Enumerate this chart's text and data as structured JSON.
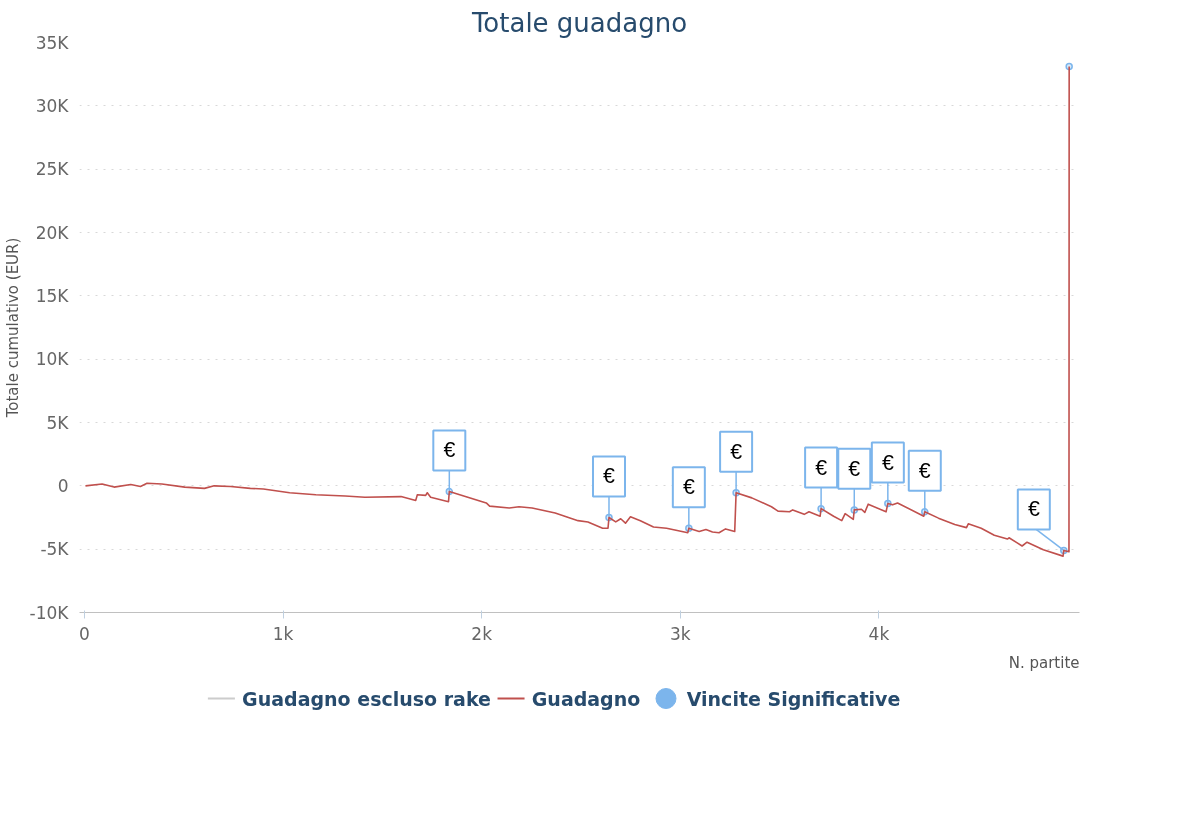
{
  "chart_data": {
    "type": "line",
    "title": "Totale guadagno",
    "xlabel": "N. partite",
    "ylabel": "Totale cumulativo (EUR)",
    "xlim": [
      -25,
      5010
    ],
    "ylim": [
      -10000,
      35000
    ],
    "xticks": [
      0,
      {
        "value": 1000,
        "label": "1k"
      },
      {
        "value": 2000,
        "label": "2k"
      },
      {
        "value": 3000,
        "label": "3k"
      },
      {
        "value": 4000,
        "label": "4k"
      }
    ],
    "yticks": [
      {
        "value": -10000,
        "label": "-10K"
      },
      {
        "value": -5000,
        "label": "-5K"
      },
      0,
      {
        "value": 5000,
        "label": "5K"
      },
      {
        "value": 10000,
        "label": "10K"
      },
      {
        "value": 15000,
        "label": "15K"
      },
      {
        "value": 20000,
        "label": "20K"
      },
      {
        "value": 25000,
        "label": "25K"
      },
      {
        "value": 30000,
        "label": "30K"
      },
      {
        "value": 35000,
        "label": "35K"
      }
    ],
    "grid": "y",
    "legend": "bottom",
    "line_style": "solid",
    "series": [
      {
        "name": "Guadagno escluso rake",
        "color": "#cccccc"
      },
      {
        "name": "Guadagno",
        "color": "#c0504d",
        "x": [
          5,
          89,
          149,
          233,
          282,
          315,
          390,
          505,
          604,
          653,
          736,
          835,
          901,
          1033,
          1165,
          1313,
          1412,
          1594,
          1668,
          1676,
          1718,
          1726,
          1743,
          1833,
          1837,
          2023,
          2040,
          2139,
          2188,
          2254,
          2370,
          2485,
          2535,
          2609,
          2636,
          2641,
          2675,
          2700,
          2724,
          2749,
          2799,
          2865,
          2931,
          3038,
          3043,
          3095,
          3129,
          3162,
          3195,
          3228,
          3274,
          3281,
          3360,
          3459,
          3492,
          3550,
          3566,
          3624,
          3648,
          3704,
          3709,
          3772,
          3813,
          3830,
          3871,
          3876,
          3912,
          3929,
          3946,
          4036,
          4045,
          4069,
          4094,
          4226,
          4231,
          4300,
          4382,
          4441,
          4450,
          4515,
          4581,
          4647,
          4655,
          4721,
          4746,
          4828,
          4927,
          4931,
          4957,
          4958
        ],
        "values": [
          0,
          150,
          -100,
          100,
          -50,
          200,
          150,
          -100,
          -200,
          0,
          -50,
          -200,
          -250,
          -550,
          -700,
          -800,
          -900,
          -850,
          -1150,
          -700,
          -750,
          -550,
          -900,
          -1250,
          -450,
          -1350,
          -1600,
          -1750,
          -1650,
          -1750,
          -2150,
          -2750,
          -2850,
          -3350,
          -3350,
          -2500,
          -2850,
          -2600,
          -2950,
          -2450,
          -2750,
          -3250,
          -3350,
          -3700,
          -3350,
          -3600,
          -3450,
          -3650,
          -3700,
          -3400,
          -3600,
          -550,
          -950,
          -1650,
          -2000,
          -2050,
          -1900,
          -2250,
          -2050,
          -2400,
          -1800,
          -2400,
          -2750,
          -2200,
          -2650,
          -1900,
          -1850,
          -2100,
          -1450,
          -2050,
          -1400,
          -1500,
          -1350,
          -2400,
          -2050,
          -2550,
          -3050,
          -3300,
          -3000,
          -3350,
          -3900,
          -4200,
          -4100,
          -4750,
          -4450,
          -5050,
          -5550,
          -5100,
          -5200,
          33100
        ]
      },
      {
        "name": "Vincite Significative",
        "type": "scatter",
        "color": "#7cb5ec",
        "marker": "circle",
        "x": [
          1837,
          2641,
          3043,
          3281,
          3709,
          3876,
          4045,
          4231,
          4931,
          4958
        ],
        "values": [
          -450,
          -2500,
          -3350,
          -550,
          -1800,
          -1900,
          -1400,
          -2050,
          -5100,
          33100
        ],
        "value_labels": [
          "€",
          "€",
          "€",
          "€",
          "€",
          "€",
          "€",
          "€",
          "€",
          null
        ]
      }
    ]
  }
}
